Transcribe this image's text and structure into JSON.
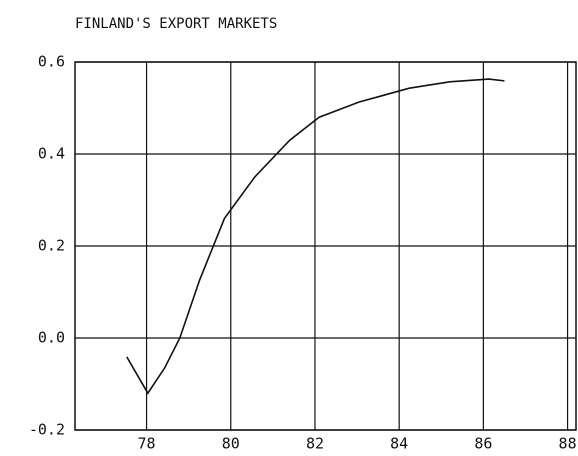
{
  "chart_data": {
    "type": "line",
    "title": "FINLAND'S EXPORT MARKETS",
    "x": [
      77.53,
      78.03,
      78.43,
      78.79,
      79.26,
      79.85,
      80.57,
      81.4,
      82.1,
      83.05,
      84.24,
      85.2,
      86.13,
      86.5
    ],
    "series": [
      {
        "name": "Export markets",
        "color": "#111111",
        "values": [
          -0.041,
          -0.12,
          -0.065,
          0.0,
          0.126,
          0.26,
          0.35,
          0.43,
          0.48,
          0.513,
          0.543,
          0.557,
          0.563,
          0.559
        ]
      }
    ],
    "xlim": [
      76.3,
      88.2
    ],
    "xticks": [
      78,
      80,
      82,
      84,
      86,
      88
    ],
    "ylim": [
      -0.2,
      0.6
    ],
    "yticks": [
      {
        "value": -0.2,
        "label": "-0.2"
      },
      {
        "value": 0,
        "label": "0.0"
      },
      {
        "value": 0.2,
        "label": "0.2"
      },
      {
        "value": 0.4,
        "label": "0.4"
      },
      {
        "value": 0.6,
        "label": "0.6"
      }
    ],
    "grid": true
  }
}
